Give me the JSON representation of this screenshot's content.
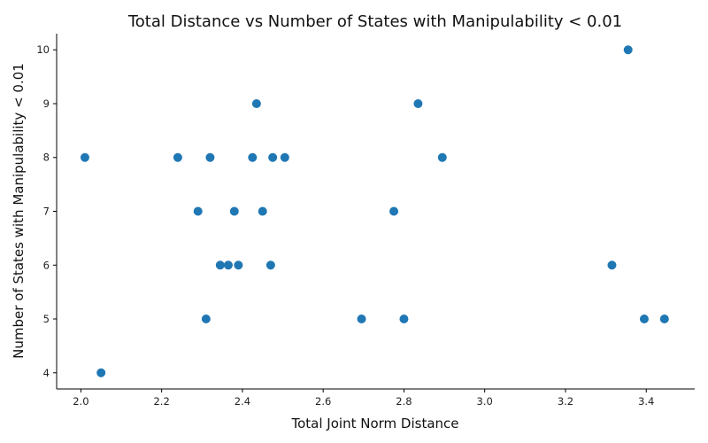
{
  "chart_data": {
    "type": "scatter",
    "title": "Total Distance vs Number of States with Manipulability < 0.01",
    "xlabel": "Total Joint Norm Distance",
    "ylabel": "Number of States with Manipulability < 0.01",
    "xlim": [
      1.94,
      3.52
    ],
    "ylim": [
      3.7,
      10.3
    ],
    "x_ticks": [
      2.0,
      2.2,
      2.4,
      2.6,
      2.8,
      3.0,
      3.2,
      3.4
    ],
    "x_tick_labels": [
      "2.0",
      "2.2",
      "2.4",
      "2.6",
      "2.8",
      "3.0",
      "3.2",
      "3.4"
    ],
    "y_ticks": [
      4,
      5,
      6,
      7,
      8,
      9,
      10
    ],
    "y_tick_labels": [
      "4",
      "5",
      "6",
      "7",
      "8",
      "9",
      "10"
    ],
    "grid": false,
    "marker_color": "#1f77b4",
    "points": [
      {
        "x": 2.01,
        "y": 8
      },
      {
        "x": 2.05,
        "y": 4
      },
      {
        "x": 2.24,
        "y": 8
      },
      {
        "x": 2.29,
        "y": 7
      },
      {
        "x": 2.31,
        "y": 5
      },
      {
        "x": 2.32,
        "y": 8
      },
      {
        "x": 2.345,
        "y": 6
      },
      {
        "x": 2.365,
        "y": 6
      },
      {
        "x": 2.38,
        "y": 7
      },
      {
        "x": 2.39,
        "y": 6
      },
      {
        "x": 2.425,
        "y": 8
      },
      {
        "x": 2.435,
        "y": 9
      },
      {
        "x": 2.45,
        "y": 7
      },
      {
        "x": 2.47,
        "y": 6
      },
      {
        "x": 2.475,
        "y": 8
      },
      {
        "x": 2.505,
        "y": 8
      },
      {
        "x": 2.695,
        "y": 5
      },
      {
        "x": 2.775,
        "y": 7
      },
      {
        "x": 2.8,
        "y": 5
      },
      {
        "x": 2.835,
        "y": 9
      },
      {
        "x": 2.895,
        "y": 8
      },
      {
        "x": 3.315,
        "y": 6
      },
      {
        "x": 3.355,
        "y": 10
      },
      {
        "x": 3.395,
        "y": 5
      },
      {
        "x": 3.445,
        "y": 5
      }
    ]
  }
}
